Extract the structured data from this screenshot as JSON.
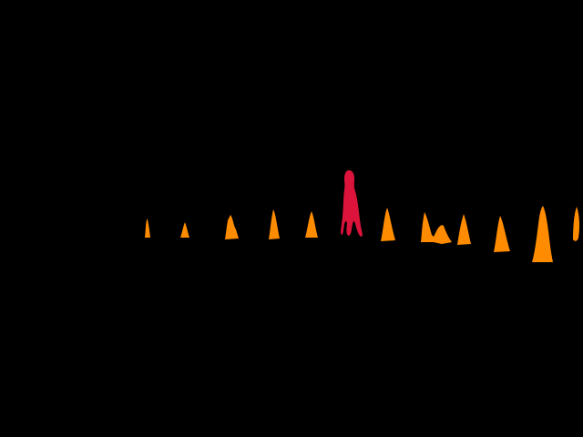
{
  "scene": {
    "background": "#000000",
    "segment_colors": {
      "highlighted": "#dc143c",
      "other": "#ff8c00"
    },
    "objects": [
      {
        "class": "cone",
        "highlighted": false
      },
      {
        "class": "cone",
        "highlighted": false
      },
      {
        "class": "cone",
        "highlighted": false
      },
      {
        "class": "cone",
        "highlighted": false
      },
      {
        "class": "cone",
        "highlighted": false
      },
      {
        "class": "person",
        "highlighted": true
      },
      {
        "class": "cone",
        "highlighted": false
      },
      {
        "class": "cone",
        "highlighted": false
      },
      {
        "class": "cone",
        "highlighted": false
      },
      {
        "class": "cone",
        "highlighted": false
      },
      {
        "class": "cone",
        "highlighted": false
      },
      {
        "class": "cone",
        "highlighted": false
      },
      {
        "class": "cone",
        "highlighted": false
      }
    ]
  }
}
